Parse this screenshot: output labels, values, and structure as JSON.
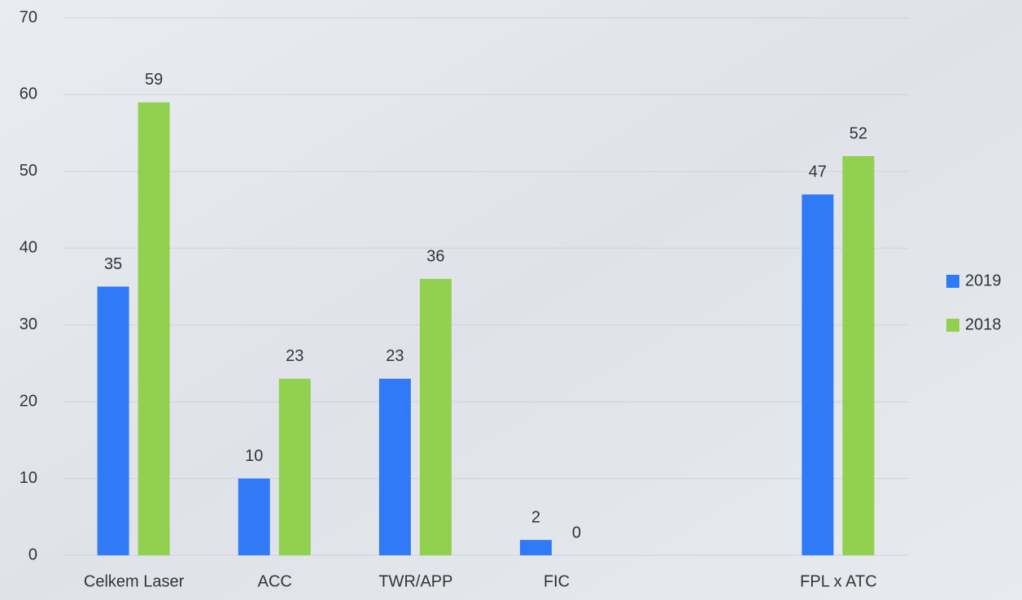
{
  "chart_data": {
    "type": "bar",
    "categories": [
      "Celkem Laser",
      "ACC",
      "TWR/APP",
      "FIC",
      null,
      "FPL x ATC"
    ],
    "series": [
      {
        "name": "2019",
        "color": "#3079f7",
        "values": [
          35,
          10,
          23,
          2,
          null,
          47
        ]
      },
      {
        "name": "2018",
        "color": "#92d050",
        "values": [
          59,
          23,
          36,
          0,
          null,
          52
        ]
      }
    ],
    "ylim": [
      0,
      70
    ],
    "yticks": [
      0,
      10,
      20,
      30,
      40,
      50,
      60,
      70
    ],
    "grid": true,
    "legend": "right",
    "data_labels": true
  }
}
